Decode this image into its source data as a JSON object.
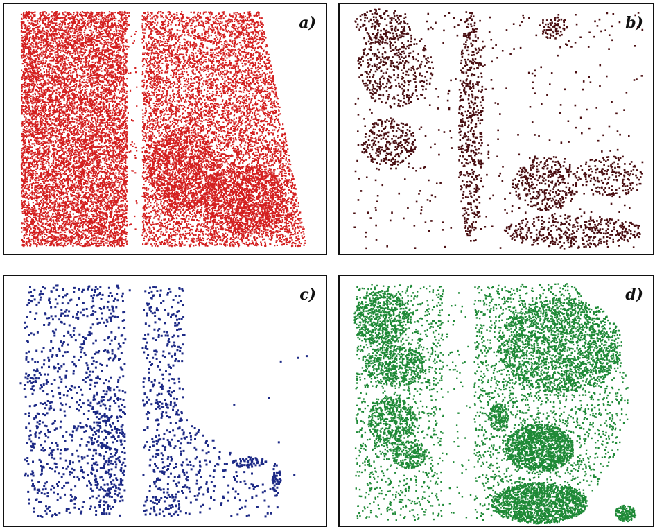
{
  "figure": {
    "panels": [
      {
        "id": "a",
        "label": "a)",
        "dot_color": "#d42020",
        "density": "very-dense"
      },
      {
        "id": "b",
        "label": "b)",
        "dot_color": "#4a0f12",
        "density": "sparse-clustered"
      },
      {
        "id": "c",
        "label": "c)",
        "dot_color": "#1d2a86",
        "density": "sparse"
      },
      {
        "id": "d",
        "label": "d)",
        "dot_color": "#1f8a37",
        "density": "dense-clustered"
      }
    ]
  }
}
